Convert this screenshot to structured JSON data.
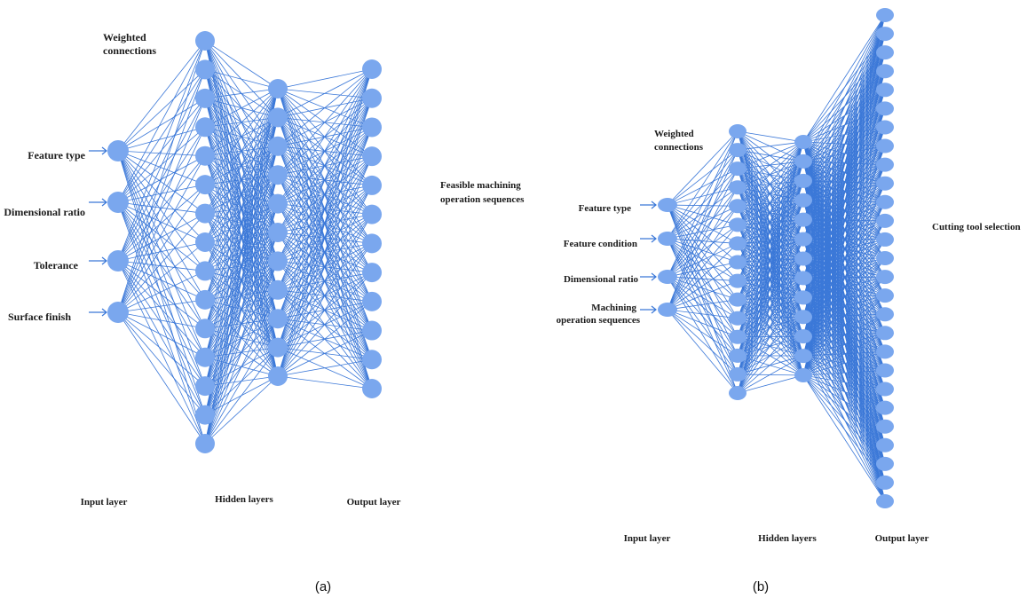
{
  "style": {
    "node_color": "#7aa7ee",
    "edge_color": "#3b78d8",
    "text_color": "#1a1a1a"
  },
  "diagrams": [
    {
      "caption": "(a)",
      "weighted_label_lines": [
        "Weighted",
        "connections"
      ],
      "inputs": [
        "Feature type",
        "Dimensional ratio",
        "Tolerance",
        "Surface finish"
      ],
      "hidden_layer_sizes": [
        15,
        11
      ],
      "output_count": 12,
      "output_label_lines": [
        "Feasible machining",
        "operation sequences"
      ],
      "layer_titles": [
        "Input layer",
        "Hidden layers",
        "Output layer"
      ]
    },
    {
      "caption": "(b)",
      "weighted_label_lines": [
        "Weighted",
        "connections"
      ],
      "inputs": [
        "Feature type",
        "Feature condition",
        "Dimensional ratio",
        "Machining operation sequences"
      ],
      "hidden_layer_sizes": [
        15,
        13
      ],
      "output_count": 27,
      "output_label_lines": [
        "Cutting tool selection"
      ],
      "layer_titles": [
        "Input layer",
        "Hidden layers",
        "Output layer"
      ]
    }
  ]
}
